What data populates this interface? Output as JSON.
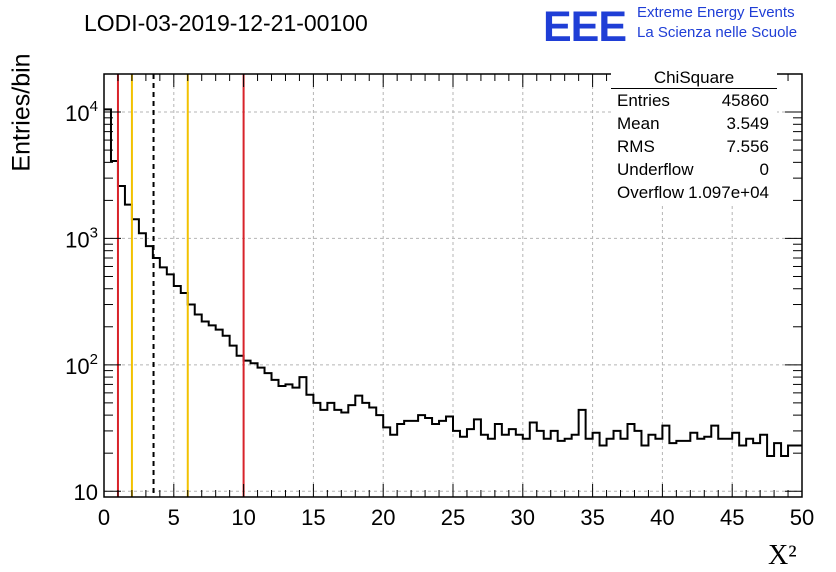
{
  "title": "LODI-03-2019-12-21-00100",
  "logo": {
    "mark": "EEE",
    "line1": "Extreme Energy Events",
    "line2": "La Scienza nelle Scuole",
    "color": "#1f3ed6"
  },
  "stats": {
    "name": "ChiSquare",
    "rows": [
      {
        "key": "Entries",
        "value": "45860"
      },
      {
        "key": "Mean",
        "value": "3.549"
      },
      {
        "key": "RMS",
        "value": "7.556"
      },
      {
        "key": "Underflow",
        "value": "0"
      },
      {
        "key": "Overflow",
        "value": "1.097e+04"
      }
    ]
  },
  "chart_data": {
    "type": "histogram",
    "xlabel": "X²",
    "ylabel": "Entries/bin",
    "xlim": [
      0,
      50
    ],
    "ylim": [
      9,
      20000
    ],
    "log_y": true,
    "grid": true,
    "xticks": [
      0,
      5,
      10,
      15,
      20,
      25,
      30,
      35,
      40,
      45,
      50
    ],
    "yticks": [
      10,
      100,
      1000,
      10000
    ],
    "bin_width": 0.5,
    "values": [
      10500,
      4100,
      2600,
      1850,
      1420,
      1100,
      870,
      700,
      590,
      520,
      420,
      370,
      300,
      250,
      220,
      205,
      190,
      170,
      142,
      118,
      108,
      103,
      95,
      86,
      76,
      68,
      70,
      66,
      80,
      58,
      50,
      44,
      50,
      44,
      42,
      48,
      57,
      50,
      46,
      40,
      32,
      28,
      34,
      36,
      36,
      40,
      38,
      34,
      36,
      39,
      30,
      27,
      31,
      37,
      28,
      26,
      34,
      28,
      31,
      28,
      26,
      35,
      30,
      26,
      30,
      25,
      26,
      28,
      44,
      26,
      29,
      23,
      26,
      30,
      26,
      34,
      30,
      23,
      28,
      26,
      33,
      24,
      25,
      25,
      29,
      26,
      27,
      33,
      26,
      26,
      29,
      23,
      26,
      24,
      28,
      19,
      24,
      19,
      23,
      23
    ],
    "vlines": [
      {
        "x": 1,
        "color": "#d8232a",
        "style": "solid"
      },
      {
        "x": 2,
        "color": "#f2c200",
        "style": "solid"
      },
      {
        "x": 3.549,
        "color": "#000000",
        "style": "dashed"
      },
      {
        "x": 6,
        "color": "#f2c200",
        "style": "solid"
      },
      {
        "x": 10,
        "color": "#d8232a",
        "style": "solid"
      }
    ],
    "line_color": "#000000"
  }
}
